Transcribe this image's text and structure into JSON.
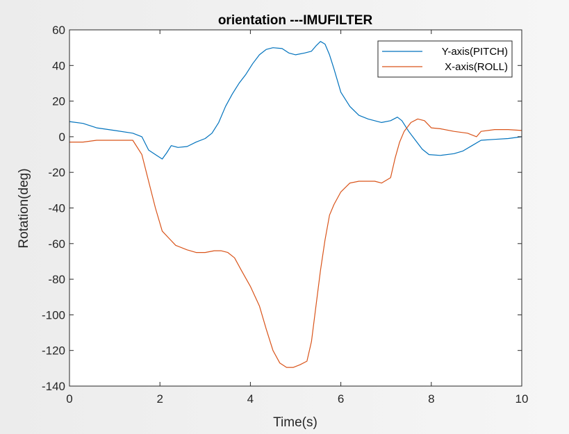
{
  "chart_data": {
    "type": "line",
    "title": "orientation ---IMUFILTER",
    "xlabel": "Time(s)",
    "ylabel": "Rotation(deg)",
    "xlim": [
      0,
      10
    ],
    "ylim": [
      -140,
      60
    ],
    "xticks": [
      0,
      2,
      4,
      6,
      8,
      10
    ],
    "yticks": [
      -140,
      -120,
      -100,
      -80,
      -60,
      -40,
      -20,
      0,
      20,
      40,
      60
    ],
    "grid": false,
    "legend_location": "top-right",
    "series": [
      {
        "name": "Y-axis(PITCH)",
        "color": "#0072BD",
        "x": [
          0,
          0.3,
          0.6,
          1.0,
          1.4,
          1.6,
          1.75,
          1.9,
          2.05,
          2.15,
          2.25,
          2.4,
          2.6,
          2.8,
          3.0,
          3.15,
          3.3,
          3.45,
          3.6,
          3.75,
          3.9,
          4.05,
          4.2,
          4.35,
          4.5,
          4.7,
          4.85,
          5.0,
          5.2,
          5.35,
          5.45,
          5.55,
          5.65,
          5.75,
          5.85,
          6.0,
          6.2,
          6.4,
          6.6,
          6.9,
          7.1,
          7.25,
          7.35,
          7.5,
          7.65,
          7.8,
          7.95,
          8.2,
          8.5,
          8.7,
          8.9,
          9.1,
          9.4,
          9.7,
          10.0
        ],
        "y": [
          8.5,
          7.5,
          5,
          3.5,
          2,
          0,
          -7.5,
          -10,
          -12.5,
          -9,
          -5,
          -6,
          -5.5,
          -3,
          -1,
          2,
          8,
          17,
          24,
          30,
          35,
          41,
          46,
          49,
          50,
          49.5,
          47,
          46,
          47,
          48,
          51,
          53.5,
          52,
          46,
          38,
          25,
          17,
          12,
          10,
          8,
          9,
          11,
          9,
          3,
          -2,
          -7,
          -10,
          -10.5,
          -9.5,
          -8,
          -5,
          -2,
          -1.5,
          -1,
          0
        ]
      },
      {
        "name": "X-axis(ROLL)",
        "color": "#D95319",
        "x": [
          0,
          0.3,
          0.6,
          1.0,
          1.4,
          1.6,
          1.75,
          1.9,
          2.05,
          2.2,
          2.35,
          2.6,
          2.8,
          3.0,
          3.2,
          3.35,
          3.5,
          3.65,
          3.8,
          4.0,
          4.2,
          4.35,
          4.5,
          4.65,
          4.8,
          4.95,
          5.1,
          5.25,
          5.35,
          5.45,
          5.55,
          5.65,
          5.75,
          5.85,
          6.0,
          6.2,
          6.4,
          6.55,
          6.75,
          6.9,
          7.1,
          7.2,
          7.3,
          7.4,
          7.55,
          7.7,
          7.85,
          8.0,
          8.2,
          8.5,
          8.8,
          9.0,
          9.1,
          9.4,
          9.7,
          10.0
        ],
        "y": [
          -3,
          -3,
          -2,
          -2,
          -2,
          -10,
          -25,
          -40,
          -53,
          -57,
          -61,
          -63.5,
          -65,
          -65,
          -64,
          -64,
          -65,
          -68,
          -75,
          -84,
          -95,
          -108,
          -120,
          -127,
          -129.5,
          -129.5,
          -128,
          -126,
          -115,
          -95,
          -75,
          -58,
          -44,
          -38,
          -31,
          -26,
          -25,
          -25,
          -25,
          -26,
          -23,
          -12,
          -3,
          3,
          8,
          10,
          9,
          5,
          4.5,
          3,
          2,
          0,
          3,
          4,
          4,
          3.5
        ]
      }
    ]
  }
}
